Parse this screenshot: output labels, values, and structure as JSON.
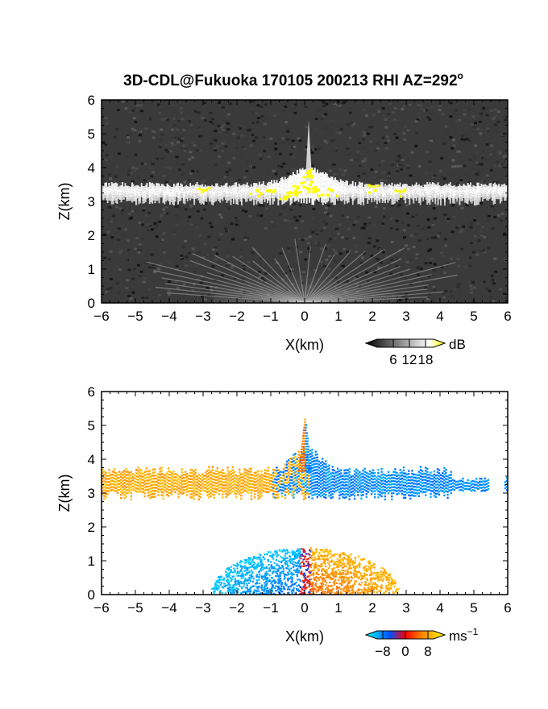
{
  "title": "3D-CDL@Fukuoka 170105 200213 RHI AZ=292",
  "title_degree": "o",
  "chart_data": [
    {
      "type": "heatmap",
      "variable": "backscatter",
      "xlabel": "X(km)",
      "ylabel": "Z(km)",
      "xlim": [
        -6,
        6
      ],
      "ylim": [
        0,
        6
      ],
      "xticks": [
        -6,
        -5,
        -4,
        -3,
        -2,
        -1,
        0,
        1,
        2,
        3,
        4,
        5,
        6
      ],
      "yticks": [
        0,
        1,
        2,
        3,
        4,
        5,
        6
      ],
      "colorbar": {
        "unit": "dB",
        "ticks": [
          6,
          12,
          18
        ],
        "range": [
          0,
          21
        ],
        "colors": [
          "#000000",
          "#ffffff",
          "#ffff00"
        ]
      },
      "cloud_layer": {
        "base_km": 3.0,
        "top_km": 3.5,
        "peak_top_km": 5.4,
        "peak_x_km": 0.1
      },
      "surface_echo_top_km": 1.3,
      "background_color": "#3a3a3a"
    },
    {
      "type": "heatmap",
      "variable": "doppler_velocity",
      "xlabel": "X(km)",
      "ylabel": "Z(km)",
      "xlim": [
        -6,
        6
      ],
      "ylim": [
        0,
        6
      ],
      "xticks": [
        -6,
        -5,
        -4,
        -3,
        -2,
        -1,
        0,
        1,
        2,
        3,
        4,
        5,
        6
      ],
      "yticks": [
        0,
        1,
        2,
        3,
        4,
        5,
        6
      ],
      "colorbar": {
        "unit": "ms",
        "unit_exponent": "−1",
        "ticks": [
          -8,
          0,
          8
        ],
        "tick_labels": [
          "−8",
          "0",
          "8"
        ],
        "range": [
          -10,
          10
        ],
        "colors": [
          "#00ffff",
          "#0050ff",
          "#ff0000",
          "#ff8000",
          "#ffff00"
        ]
      },
      "cloud_layer": {
        "base_km": 2.8,
        "top_km": 3.7,
        "peak_top_km": 5.2,
        "peak_x_km": 0.0
      },
      "cloud_velocity": {
        "left_of_origin": 6,
        "right_of_origin": -6
      },
      "surface_velocity": {
        "left_of_origin": -8,
        "right_of_origin": 6
      },
      "surface_echo_top_km": 1.4
    }
  ]
}
